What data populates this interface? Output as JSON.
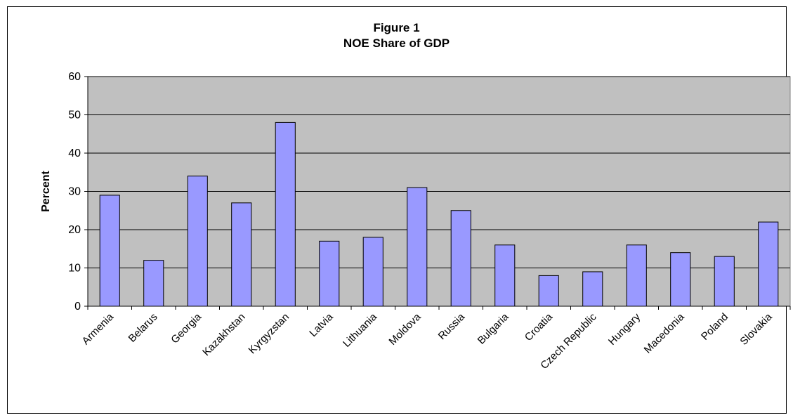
{
  "chart_data": {
    "type": "bar",
    "title": "Figure 1",
    "subtitle": "NOE Share of GDP",
    "xlabel": "",
    "ylabel": "Percent",
    "ylim": [
      0,
      60
    ],
    "yticks": [
      0,
      10,
      20,
      30,
      40,
      50,
      60
    ],
    "grid": true,
    "legend": "none",
    "categories": [
      "Armenia",
      "Belarus",
      "Georgia",
      "Kazakhstan",
      "Kyrgyzstan",
      "Latvia",
      "Lithuania",
      "Moldova",
      "Russia",
      "Bulgaria",
      "Croatia",
      "Czech Republic",
      "Hungary",
      "Macedonia",
      "Poland",
      "Slovakia"
    ],
    "values": [
      29,
      12,
      34,
      27,
      48,
      17,
      18,
      31,
      25,
      16,
      8,
      9,
      16,
      14,
      13,
      22
    ],
    "colors": {
      "bar_fill": "#9999ff",
      "bar_stroke": "#000000",
      "plot_background": "#c0c0c0",
      "gridline": "#000000"
    }
  }
}
